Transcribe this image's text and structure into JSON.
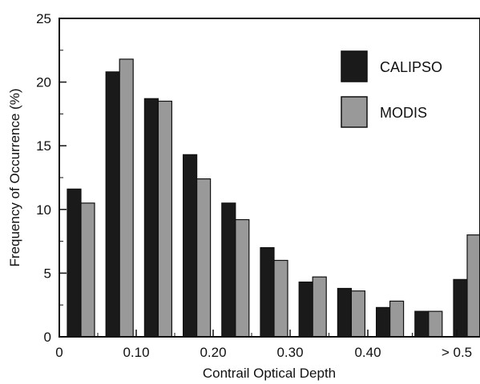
{
  "chart_data": {
    "type": "bar",
    "title": "",
    "xlabel": "Contrail Optical Depth",
    "ylabel": "Frequency of Occurrence (%)",
    "ylim": [
      0,
      25
    ],
    "yticks": [
      "0",
      "5",
      "10",
      "15",
      "20",
      "25"
    ],
    "xtick_labels": [
      "0",
      "0.10",
      "0.20",
      "0.30",
      "0.40",
      "> 0.5"
    ],
    "categories": [
      "0-0.05",
      "0.05-0.10",
      "0.10-0.15",
      "0.15-0.20",
      "0.20-0.25",
      "0.25-0.30",
      "0.30-0.35",
      "0.35-0.40",
      "0.40-0.45",
      "0.45-0.50",
      "> 0.5"
    ],
    "series": [
      {
        "name": "CALIPSO",
        "color": "#1a1a1a",
        "values": [
          11.6,
          20.8,
          18.7,
          14.3,
          10.5,
          7.0,
          4.3,
          3.8,
          2.3,
          2.0,
          4.5
        ]
      },
      {
        "name": "MODIS",
        "color": "#999999",
        "values": [
          10.5,
          21.8,
          18.5,
          12.4,
          9.2,
          6.0,
          4.7,
          3.6,
          2.8,
          2.0,
          8.0
        ]
      }
    ],
    "legend_position": "top-right",
    "grid": false
  }
}
